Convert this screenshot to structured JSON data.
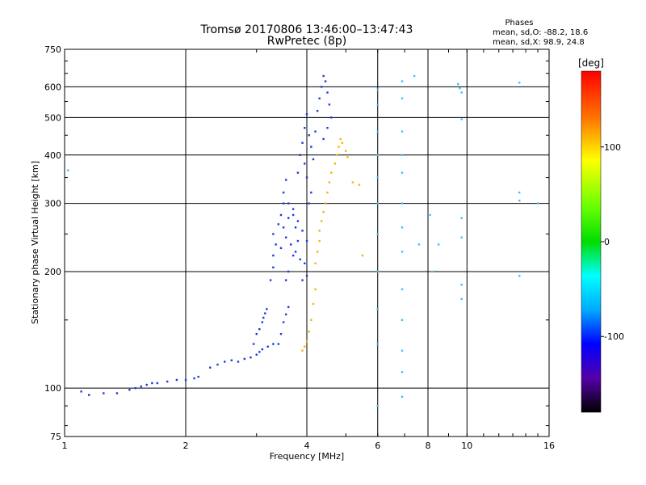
{
  "chart_data": {
    "type": "scatter",
    "title": "Tromsø 20170806 13:46:00–13:47:43",
    "subtitle": "RwPretec (8p)",
    "xlabel": "Frequency [MHz]",
    "ylabel": "Stationary phase Virtual Height [km]",
    "xscale": "log",
    "yscale": "log",
    "xlim": [
      1,
      16
    ],
    "ylim": [
      75,
      750
    ],
    "x_ticks": [
      1,
      2,
      4,
      6,
      8,
      10,
      16
    ],
    "y_ticks": [
      75,
      100,
      200,
      300,
      400,
      500,
      600,
      750
    ],
    "x_gridlines": [
      2,
      4,
      6,
      8,
      10
    ],
    "y_gridlines": [
      100,
      200,
      300,
      400,
      500,
      600
    ],
    "phases_box": {
      "title": "Phases",
      "line_o": "mean, sd,O:  -88.2, 18.6",
      "line_x": "mean, sd,X:  98.9, 24.8"
    },
    "colorbar": {
      "label": "[deg]",
      "min": -180,
      "max": 180,
      "ticks": [
        100,
        0,
        -100
      ],
      "colormap": "rainbow"
    },
    "series": [
      {
        "mode": "O",
        "color": "#1a3ae0",
        "points": [
          [
            1.1,
            98
          ],
          [
            1.15,
            96
          ],
          [
            1.25,
            97
          ],
          [
            1.35,
            97
          ],
          [
            1.45,
            99
          ],
          [
            1.5,
            100
          ],
          [
            1.55,
            101
          ],
          [
            1.6,
            102
          ],
          [
            1.65,
            103
          ],
          [
            1.7,
            103
          ],
          [
            1.8,
            104
          ],
          [
            1.9,
            105
          ],
          [
            2.0,
            105
          ],
          [
            2.1,
            106
          ],
          [
            2.15,
            107
          ],
          [
            2.3,
            113
          ],
          [
            2.4,
            115
          ],
          [
            2.5,
            117
          ],
          [
            2.6,
            118
          ],
          [
            2.7,
            117
          ],
          [
            2.8,
            119
          ],
          [
            2.9,
            120
          ],
          [
            3.0,
            122
          ],
          [
            3.05,
            124
          ],
          [
            3.1,
            126
          ],
          [
            3.2,
            128
          ],
          [
            3.3,
            130
          ],
          [
            2.95,
            130
          ],
          [
            3.0,
            138
          ],
          [
            3.05,
            142
          ],
          [
            3.1,
            148
          ],
          [
            3.12,
            152
          ],
          [
            3.15,
            156
          ],
          [
            3.18,
            160
          ],
          [
            3.4,
            130
          ],
          [
            3.45,
            138
          ],
          [
            3.5,
            148
          ],
          [
            3.55,
            155
          ],
          [
            3.6,
            162
          ],
          [
            3.25,
            190
          ],
          [
            3.3,
            205
          ],
          [
            3.3,
            220
          ],
          [
            3.35,
            235
          ],
          [
            3.3,
            250
          ],
          [
            3.4,
            265
          ],
          [
            3.45,
            280
          ],
          [
            3.5,
            300
          ],
          [
            3.5,
            320
          ],
          [
            3.55,
            345
          ],
          [
            3.6,
            300
          ],
          [
            3.7,
            280
          ],
          [
            3.75,
            260
          ],
          [
            3.8,
            240
          ],
          [
            3.7,
            220
          ],
          [
            3.6,
            200
          ],
          [
            3.55,
            190
          ],
          [
            3.9,
            190
          ],
          [
            4.0,
            195
          ],
          [
            3.8,
            360
          ],
          [
            3.85,
            400
          ],
          [
            3.9,
            430
          ],
          [
            3.95,
            470
          ],
          [
            4.0,
            510
          ],
          [
            4.05,
            450
          ],
          [
            4.1,
            420
          ],
          [
            4.15,
            390
          ],
          [
            4.2,
            460
          ],
          [
            4.25,
            520
          ],
          [
            4.3,
            560
          ],
          [
            4.35,
            600
          ],
          [
            4.4,
            640
          ],
          [
            4.45,
            620
          ],
          [
            4.5,
            580
          ],
          [
            4.55,
            540
          ],
          [
            4.6,
            500
          ],
          [
            4.5,
            470
          ],
          [
            4.4,
            440
          ],
          [
            3.5,
            260
          ],
          [
            3.6,
            275
          ],
          [
            3.7,
            290
          ],
          [
            3.8,
            270
          ],
          [
            3.9,
            255
          ],
          [
            4.0,
            240
          ],
          [
            3.45,
            230
          ],
          [
            3.55,
            245
          ],
          [
            3.65,
            235
          ],
          [
            3.75,
            225
          ],
          [
            3.85,
            215
          ],
          [
            3.95,
            210
          ],
          [
            4.05,
            300
          ],
          [
            4.1,
            320
          ],
          [
            4.0,
            350
          ],
          [
            3.95,
            380
          ]
        ]
      },
      {
        "mode": "X",
        "color": "#f0b800",
        "points": [
          [
            3.9,
            125
          ],
          [
            3.95,
            128
          ],
          [
            4.0,
            132
          ],
          [
            4.05,
            140
          ],
          [
            4.1,
            150
          ],
          [
            4.15,
            165
          ],
          [
            4.2,
            180
          ],
          [
            4.2,
            210
          ],
          [
            4.25,
            225
          ],
          [
            4.3,
            240
          ],
          [
            4.3,
            255
          ],
          [
            4.35,
            270
          ],
          [
            4.4,
            285
          ],
          [
            4.45,
            300
          ],
          [
            4.5,
            320
          ],
          [
            4.55,
            340
          ],
          [
            4.6,
            360
          ],
          [
            4.7,
            380
          ],
          [
            4.75,
            400
          ],
          [
            4.8,
            420
          ],
          [
            4.85,
            440
          ],
          [
            4.9,
            430
          ],
          [
            5.0,
            410
          ],
          [
            5.05,
            395
          ],
          [
            5.2,
            340
          ],
          [
            5.4,
            335
          ],
          [
            5.5,
            220
          ]
        ]
      },
      {
        "mode": "scattered",
        "color": "#40c0ff",
        "points": [
          [
            1.02,
            365
          ],
          [
            6.0,
            590
          ],
          [
            6.0,
            540
          ],
          [
            6.0,
            460
          ],
          [
            6.0,
            400
          ],
          [
            6.0,
            350
          ],
          [
            6.0,
            300
          ],
          [
            6.0,
            250
          ],
          [
            6.0,
            200
          ],
          [
            6.0,
            160
          ],
          [
            6.0,
            130
          ],
          [
            6.0,
            90
          ],
          [
            6.9,
            620
          ],
          [
            6.9,
            560
          ],
          [
            6.9,
            460
          ],
          [
            6.9,
            400
          ],
          [
            6.9,
            360
          ],
          [
            6.9,
            300
          ],
          [
            6.9,
            260
          ],
          [
            6.9,
            225
          ],
          [
            6.9,
            180
          ],
          [
            6.9,
            150
          ],
          [
            6.9,
            125
          ],
          [
            6.9,
            110
          ],
          [
            6.9,
            95
          ],
          [
            7.4,
            640
          ],
          [
            7.6,
            235
          ],
          [
            8.1,
            280
          ],
          [
            8.2,
            200
          ],
          [
            8.5,
            235
          ],
          [
            9.5,
            610
          ],
          [
            9.6,
            595
          ],
          [
            9.7,
            580
          ],
          [
            9.7,
            495
          ],
          [
            9.7,
            275
          ],
          [
            9.7,
            245
          ],
          [
            9.7,
            185
          ],
          [
            9.7,
            170
          ],
          [
            13.5,
            615
          ],
          [
            13.5,
            320
          ],
          [
            13.5,
            305
          ],
          [
            13.5,
            195
          ],
          [
            15.0,
            300
          ]
        ]
      }
    ]
  }
}
